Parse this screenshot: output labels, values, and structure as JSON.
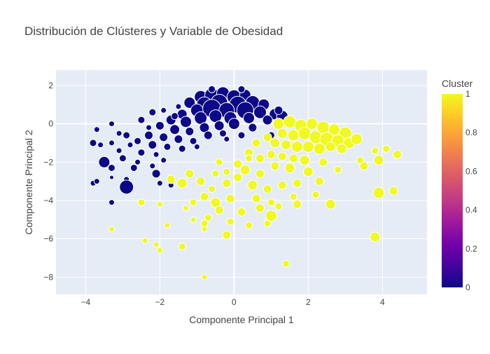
{
  "chart_data": {
    "type": "scatter",
    "title": "Distribución de Clústeres y Variable de Obesidad",
    "xlabel": "Componente Principal 1",
    "ylabel": "Componente Principal 2",
    "xlim": [
      -4.8,
      5.2
    ],
    "ylim": [
      -8.9,
      2.8
    ],
    "xticks": [
      -4,
      -2,
      0,
      2,
      4
    ],
    "yticks": [
      2,
      0,
      -2,
      -4,
      -6,
      -8
    ],
    "xtick_labels": [
      "−4",
      "−2",
      "0",
      "2",
      "4"
    ],
    "ytick_labels": [
      "2",
      "0",
      "−2",
      "−4",
      "−6",
      "−8"
    ],
    "grid": true,
    "colorbar": {
      "title": "Cluster",
      "range": [
        0,
        1
      ],
      "ticks": [
        0,
        0.2,
        0.4,
        0.6,
        0.8,
        1
      ],
      "tick_labels": [
        "0",
        "0.2",
        "0.4",
        "0.6",
        "0.8",
        "1"
      ]
    },
    "colors": {
      "cluster_0": "#0d0887",
      "cluster_1": "#f0f921",
      "plot_bg": "#e5ecf6",
      "grid": "#ffffff"
    },
    "series": [
      {
        "cluster": 0,
        "points": [
          [
            -0.9,
            1.4,
            9
          ],
          [
            -0.6,
            1.5,
            10
          ],
          [
            -0.3,
            1.6,
            9
          ],
          [
            0.0,
            1.4,
            10
          ],
          [
            0.3,
            1.5,
            8
          ],
          [
            -1.2,
            1.1,
            8
          ],
          [
            -0.8,
            1.0,
            11
          ],
          [
            -0.4,
            1.1,
            12
          ],
          [
            0.1,
            1.0,
            12
          ],
          [
            0.5,
            1.1,
            10
          ],
          [
            0.8,
            1.0,
            8
          ],
          [
            -1.0,
            0.7,
            9
          ],
          [
            -0.6,
            0.8,
            13
          ],
          [
            -0.2,
            0.7,
            11
          ],
          [
            0.3,
            0.7,
            12
          ],
          [
            0.7,
            0.6,
            9
          ],
          [
            1.1,
            0.5,
            8
          ],
          [
            -1.4,
            0.5,
            7
          ],
          [
            -1.7,
            0.2,
            7
          ],
          [
            -1.3,
            0.1,
            8
          ],
          [
            -0.9,
            0.3,
            9
          ],
          [
            -0.5,
            0.4,
            9
          ],
          [
            -0.1,
            0.3,
            9
          ],
          [
            0.4,
            0.3,
            8
          ],
          [
            0.9,
            0.2,
            7
          ],
          [
            1.3,
            0.4,
            8
          ],
          [
            -2.0,
            -0.1,
            6
          ],
          [
            -1.6,
            -0.3,
            7
          ],
          [
            -1.2,
            -0.4,
            6
          ],
          [
            -0.8,
            -0.2,
            7
          ],
          [
            -0.4,
            -0.1,
            7
          ],
          [
            0.0,
            0.0,
            8
          ],
          [
            0.5,
            -0.2,
            6
          ],
          [
            -1.9,
            -0.7,
            6
          ],
          [
            -1.5,
            -0.8,
            6
          ],
          [
            -1.1,
            -0.9,
            5
          ],
          [
            -0.7,
            -0.6,
            6
          ],
          [
            -0.3,
            -0.5,
            5
          ],
          [
            0.2,
            -0.6,
            5
          ],
          [
            -2.3,
            -0.6,
            6
          ],
          [
            -2.6,
            -0.9,
            5
          ],
          [
            -2.9,
            -0.6,
            5
          ],
          [
            -2.2,
            -1.1,
            6
          ],
          [
            -1.8,
            -1.2,
            5
          ],
          [
            -1.4,
            -1.3,
            5
          ],
          [
            -1.0,
            -1.2,
            4
          ],
          [
            -2.5,
            -1.5,
            5
          ],
          [
            -2.1,
            -1.6,
            4
          ],
          [
            -2.8,
            -1.1,
            4
          ],
          [
            -3.1,
            -0.5,
            4
          ],
          [
            -3.3,
            -1.0,
            4
          ],
          [
            -3.0,
            -1.8,
            5
          ],
          [
            -3.5,
            -2.0,
            8
          ],
          [
            -3.3,
            -2.3,
            5
          ],
          [
            -2.6,
            -2.0,
            4
          ],
          [
            -2.2,
            -2.2,
            4
          ],
          [
            -1.9,
            -1.9,
            4
          ],
          [
            -2.7,
            -2.3,
            5
          ],
          [
            -2.1,
            -2.6,
            6
          ],
          [
            -2.9,
            -2.9,
            4
          ],
          [
            -3.8,
            -3.1,
            4
          ],
          [
            -3.7,
            -3.0,
            4
          ],
          [
            -2.9,
            -3.3,
            10
          ],
          [
            -2.0,
            -3.1,
            4
          ],
          [
            -1.7,
            -3.2,
            4
          ],
          [
            -3.3,
            -4.1,
            4
          ],
          [
            -3.3,
            -2.8,
            3
          ],
          [
            -3.1,
            -1.4,
            4
          ],
          [
            -3.6,
            -1.1,
            4
          ],
          [
            -3.3,
            0.0,
            4
          ],
          [
            -3.8,
            -1.0,
            5
          ],
          [
            -3.7,
            -0.3,
            4
          ],
          [
            -2.5,
            0.2,
            5
          ],
          [
            -2.2,
            0.6,
            5
          ],
          [
            -1.9,
            0.7,
            4
          ],
          [
            -1.5,
            0.9,
            4
          ],
          [
            -2.3,
            -0.2,
            4
          ],
          [
            1.2,
            0.7,
            6
          ],
          [
            1.0,
            -0.6,
            5
          ],
          [
            -0.6,
            1.8,
            5
          ],
          [
            0.2,
            1.8,
            5
          ],
          [
            -1.6,
            0.4,
            5
          ],
          [
            -0.2,
            -0.8,
            4
          ]
        ]
      },
      {
        "cluster": 1,
        "points": [
          [
            1.2,
            0.0,
            8
          ],
          [
            1.5,
            0.1,
            9
          ],
          [
            1.8,
            -0.1,
            9
          ],
          [
            2.1,
            0.0,
            8
          ],
          [
            2.4,
            -0.2,
            9
          ],
          [
            2.7,
            -0.3,
            8
          ],
          [
            3.0,
            -0.5,
            9
          ],
          [
            1.3,
            -0.5,
            7
          ],
          [
            1.6,
            -0.6,
            8
          ],
          [
            1.9,
            -0.5,
            9
          ],
          [
            2.2,
            -0.7,
            9
          ],
          [
            2.5,
            -0.8,
            10
          ],
          [
            2.8,
            -0.9,
            9
          ],
          [
            3.1,
            -1.0,
            8
          ],
          [
            3.3,
            -0.8,
            8
          ],
          [
            1.1,
            -1.0,
            7
          ],
          [
            1.4,
            -1.1,
            7
          ],
          [
            1.7,
            -1.2,
            8
          ],
          [
            2.0,
            -1.2,
            8
          ],
          [
            2.3,
            -1.3,
            8
          ],
          [
            2.6,
            -1.2,
            7
          ],
          [
            2.9,
            -1.3,
            7
          ],
          [
            1.0,
            -1.6,
            6
          ],
          [
            1.3,
            -1.7,
            6
          ],
          [
            1.6,
            -1.8,
            6
          ],
          [
            1.9,
            -1.9,
            7
          ],
          [
            0.6,
            -1.0,
            6
          ],
          [
            0.9,
            -0.7,
            6
          ],
          [
            0.4,
            -1.5,
            6
          ],
          [
            0.7,
            -1.8,
            6
          ],
          [
            1.1,
            -2.2,
            6
          ],
          [
            1.5,
            -2.3,
            7
          ],
          [
            2.0,
            -2.5,
            7
          ],
          [
            0.3,
            -2.4,
            7
          ],
          [
            0.7,
            -2.6,
            6
          ],
          [
            0.1,
            -2.8,
            6
          ],
          [
            -0.2,
            -2.5,
            5
          ],
          [
            -0.5,
            -2.6,
            5
          ],
          [
            -1.2,
            -2.6,
            6
          ],
          [
            -1.7,
            -2.9,
            6
          ],
          [
            -1.4,
            -3.1,
            7
          ],
          [
            -0.9,
            -3.0,
            6
          ],
          [
            -0.6,
            -3.4,
            5
          ],
          [
            -0.2,
            -3.1,
            6
          ],
          [
            0.5,
            -3.2,
            7
          ],
          [
            0.9,
            -3.4,
            6
          ],
          [
            1.3,
            -3.2,
            6
          ],
          [
            1.7,
            -3.1,
            6
          ],
          [
            2.3,
            -3.0,
            6
          ],
          [
            -0.8,
            -3.8,
            6
          ],
          [
            -0.5,
            -4.1,
            7
          ],
          [
            -0.1,
            -3.9,
            6
          ],
          [
            0.6,
            -3.9,
            6
          ],
          [
            1.0,
            -4.1,
            5
          ],
          [
            1.7,
            -4.2,
            6
          ],
          [
            2.6,
            -4.2,
            7
          ],
          [
            -1.1,
            -4.1,
            5
          ],
          [
            -0.4,
            -4.5,
            6
          ],
          [
            0.2,
            -4.6,
            6
          ],
          [
            0.7,
            -4.4,
            6
          ],
          [
            1.2,
            -4.3,
            5
          ],
          [
            -0.7,
            -4.9,
            5
          ],
          [
            -0.1,
            -5.1,
            5
          ],
          [
            0.4,
            -5.3,
            5
          ],
          [
            0.9,
            -5.2,
            5
          ],
          [
            1.0,
            -4.8,
            8
          ],
          [
            -0.8,
            -5.2,
            5
          ],
          [
            -0.8,
            -5.5,
            4
          ],
          [
            -0.2,
            -5.8,
            6
          ],
          [
            -1.1,
            -5.0,
            4
          ],
          [
            -1.8,
            -5.3,
            4
          ],
          [
            -1.4,
            -6.4,
            5
          ],
          [
            -2.1,
            -6.3,
            4
          ],
          [
            -2.4,
            -6.1,
            4
          ],
          [
            -2.0,
            -6.6,
            4
          ],
          [
            -3.3,
            -5.5,
            4
          ],
          [
            -2.5,
            -4.1,
            5
          ],
          [
            -2.0,
            -4.2,
            4
          ],
          [
            -1.3,
            -4.4,
            4
          ],
          [
            -0.8,
            -8.0,
            4
          ],
          [
            1.4,
            -7.3,
            5
          ],
          [
            3.5,
            -2.2,
            6
          ],
          [
            3.9,
            -1.9,
            7
          ],
          [
            4.4,
            -1.6,
            6
          ],
          [
            3.8,
            -1.4,
            5
          ],
          [
            4.1,
            -1.3,
            5
          ],
          [
            3.9,
            -3.6,
            8
          ],
          [
            4.3,
            -3.5,
            6
          ],
          [
            3.8,
            -5.9,
            7
          ],
          [
            2.8,
            -2.4,
            5
          ],
          [
            2.4,
            -2.0,
            6
          ],
          [
            3.4,
            -1.9,
            5
          ],
          [
            1.6,
            -3.8,
            5
          ],
          [
            2.2,
            -3.7,
            5
          ],
          [
            0.1,
            -2.1,
            6
          ],
          [
            -0.4,
            -2.0,
            5
          ],
          [
            0.4,
            -1.8,
            5
          ]
        ]
      }
    ]
  }
}
